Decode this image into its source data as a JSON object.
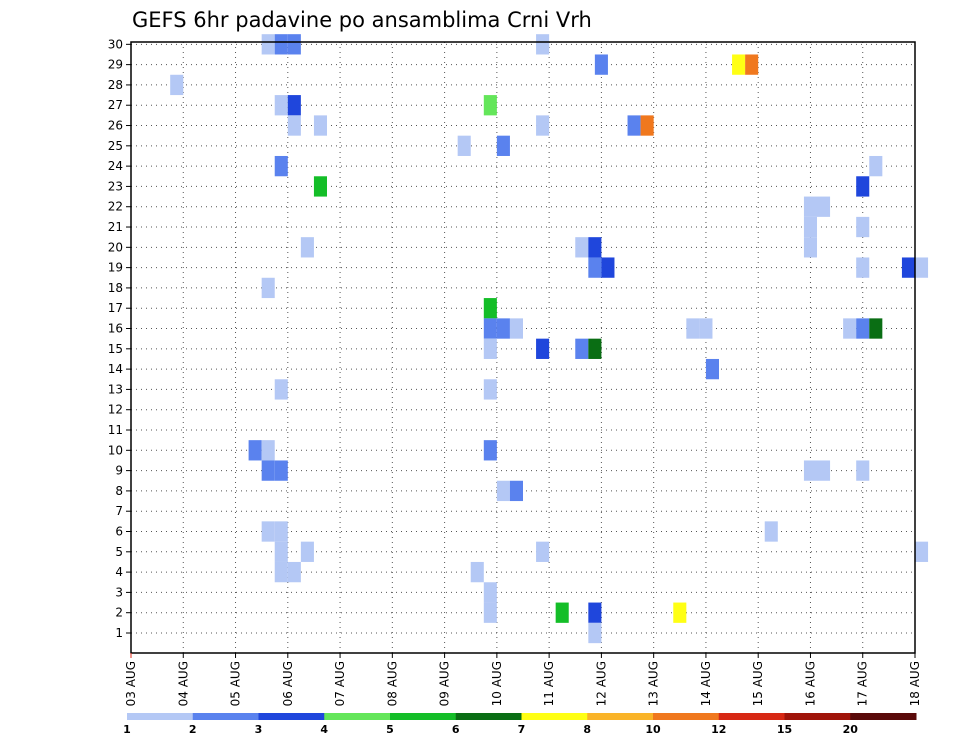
{
  "chart_data": {
    "type": "heatmap",
    "title": "GEFS 6hr padavine po ansamblima Crni Vrh",
    "xlabel": "",
    "ylabel": "",
    "x_tick_labels": [
      "03 AUG",
      "04 AUG",
      "05 AUG",
      "06 AUG",
      "07 AUG",
      "08 AUG",
      "09 AUG",
      "10 AUG",
      "11 AUG",
      "12 AUG",
      "13 AUG",
      "14 AUG",
      "15 AUG",
      "16 AUG",
      "17 AUG",
      "18 AUG"
    ],
    "x_range_days": [
      0,
      15
    ],
    "y_range": [
      0,
      30
    ],
    "y_ticks": [
      1,
      2,
      3,
      4,
      5,
      6,
      7,
      8,
      9,
      10,
      11,
      12,
      13,
      14,
      15,
      16,
      17,
      18,
      19,
      20,
      21,
      22,
      23,
      24,
      25,
      26,
      27,
      28,
      29,
      30
    ],
    "grid": true,
    "step_days": 0.25,
    "legend": {
      "labels": [
        "1",
        "2",
        "3",
        "4",
        "5",
        "6",
        "7",
        "8",
        "10",
        "12",
        "15",
        "20"
      ],
      "colors": [
        "#b4c8f5",
        "#5a82ee",
        "#1f46dc",
        "#64e65a",
        "#14be28",
        "#0a6e14",
        "#ffff14",
        "#fab428",
        "#f0781e",
        "#d72814",
        "#a0140a",
        "#5a0a0a"
      ]
    },
    "cells": [
      {
        "day": 2.5,
        "member": 30,
        "c": 1
      },
      {
        "day": 2.75,
        "member": 30,
        "c": 2
      },
      {
        "day": 3.0,
        "member": 30,
        "c": 2
      },
      {
        "day": 7.75,
        "member": 30,
        "c": 1
      },
      {
        "day": 8.875,
        "member": 29,
        "c": 2
      },
      {
        "day": 11.5,
        "member": 29,
        "c": 7
      },
      {
        "day": 11.75,
        "member": 29,
        "c": 9
      },
      {
        "day": 0.75,
        "member": 28,
        "c": 1
      },
      {
        "day": 2.75,
        "member": 27,
        "c": 1
      },
      {
        "day": 3.0,
        "member": 27,
        "c": 3
      },
      {
        "day": 6.75,
        "member": 27,
        "c": 4
      },
      {
        "day": 3.0,
        "member": 26,
        "c": 1
      },
      {
        "day": 3.5,
        "member": 26,
        "c": 1
      },
      {
        "day": 7.75,
        "member": 26,
        "c": 1
      },
      {
        "day": 9.5,
        "member": 26,
        "c": 2
      },
      {
        "day": 9.75,
        "member": 26,
        "c": 9
      },
      {
        "day": 6.25,
        "member": 25,
        "c": 1
      },
      {
        "day": 7.0,
        "member": 25,
        "c": 2
      },
      {
        "day": 2.75,
        "member": 24,
        "c": 2
      },
      {
        "day": 14.125,
        "member": 24,
        "c": 1
      },
      {
        "day": 3.5,
        "member": 23,
        "c": 5
      },
      {
        "day": 13.875,
        "member": 23,
        "c": 3
      },
      {
        "day": 12.875,
        "member": 22,
        "c": 1
      },
      {
        "day": 13.125,
        "member": 22,
        "c": 1
      },
      {
        "day": 12.875,
        "member": 21,
        "c": 1
      },
      {
        "day": 13.875,
        "member": 21,
        "c": 1
      },
      {
        "day": 3.25,
        "member": 20,
        "c": 1
      },
      {
        "day": 8.5,
        "member": 20,
        "c": 1
      },
      {
        "day": 8.75,
        "member": 20,
        "c": 3
      },
      {
        "day": 12.875,
        "member": 20,
        "c": 1
      },
      {
        "day": 8.75,
        "member": 19,
        "c": 2
      },
      {
        "day": 9.0,
        "member": 19,
        "c": 3
      },
      {
        "day": 13.875,
        "member": 19,
        "c": 1
      },
      {
        "day": 14.75,
        "member": 19,
        "c": 3
      },
      {
        "day": 15.0,
        "member": 19,
        "c": 1
      },
      {
        "day": 2.5,
        "member": 18,
        "c": 1
      },
      {
        "day": 6.75,
        "member": 17,
        "c": 5
      },
      {
        "day": 6.75,
        "member": 16,
        "c": 2
      },
      {
        "day": 7.0,
        "member": 16,
        "c": 2
      },
      {
        "day": 7.25,
        "member": 16,
        "c": 1
      },
      {
        "day": 10.625,
        "member": 16,
        "c": 1
      },
      {
        "day": 10.875,
        "member": 16,
        "c": 1
      },
      {
        "day": 13.625,
        "member": 16,
        "c": 1
      },
      {
        "day": 13.875,
        "member": 16,
        "c": 2
      },
      {
        "day": 14.125,
        "member": 16,
        "c": 6
      },
      {
        "day": 6.75,
        "member": 15,
        "c": 1
      },
      {
        "day": 7.75,
        "member": 15,
        "c": 3
      },
      {
        "day": 8.5,
        "member": 15,
        "c": 2
      },
      {
        "day": 8.75,
        "member": 15,
        "c": 6
      },
      {
        "day": 11.0,
        "member": 14,
        "c": 2
      },
      {
        "day": 2.75,
        "member": 13,
        "c": 1
      },
      {
        "day": 6.75,
        "member": 13,
        "c": 1
      },
      {
        "day": 2.25,
        "member": 10,
        "c": 2
      },
      {
        "day": 2.5,
        "member": 10,
        "c": 1
      },
      {
        "day": 6.75,
        "member": 10,
        "c": 2
      },
      {
        "day": 2.5,
        "member": 9,
        "c": 2
      },
      {
        "day": 2.75,
        "member": 9,
        "c": 2
      },
      {
        "day": 12.875,
        "member": 9,
        "c": 1
      },
      {
        "day": 13.125,
        "member": 9,
        "c": 1
      },
      {
        "day": 13.875,
        "member": 9,
        "c": 1
      },
      {
        "day": 7.0,
        "member": 8,
        "c": 1
      },
      {
        "day": 7.25,
        "member": 8,
        "c": 2
      },
      {
        "day": 2.5,
        "member": 6,
        "c": 1
      },
      {
        "day": 2.75,
        "member": 6,
        "c": 1
      },
      {
        "day": 12.125,
        "member": 6,
        "c": 1
      },
      {
        "day": 2.75,
        "member": 5,
        "c": 1
      },
      {
        "day": 3.25,
        "member": 5,
        "c": 1
      },
      {
        "day": 7.75,
        "member": 5,
        "c": 1
      },
      {
        "day": 15.0,
        "member": 5,
        "c": 1
      },
      {
        "day": 2.75,
        "member": 4,
        "c": 1
      },
      {
        "day": 3.0,
        "member": 4,
        "c": 1
      },
      {
        "day": 6.5,
        "member": 4,
        "c": 1
      },
      {
        "day": 6.75,
        "member": 3,
        "c": 1
      },
      {
        "day": 6.75,
        "member": 2,
        "c": 1
      },
      {
        "day": 8.125,
        "member": 2,
        "c": 5
      },
      {
        "day": 8.75,
        "member": 2,
        "c": 3
      },
      {
        "day": 10.375,
        "member": 2,
        "c": 7
      },
      {
        "day": 8.75,
        "member": 1,
        "c": 1
      }
    ]
  }
}
